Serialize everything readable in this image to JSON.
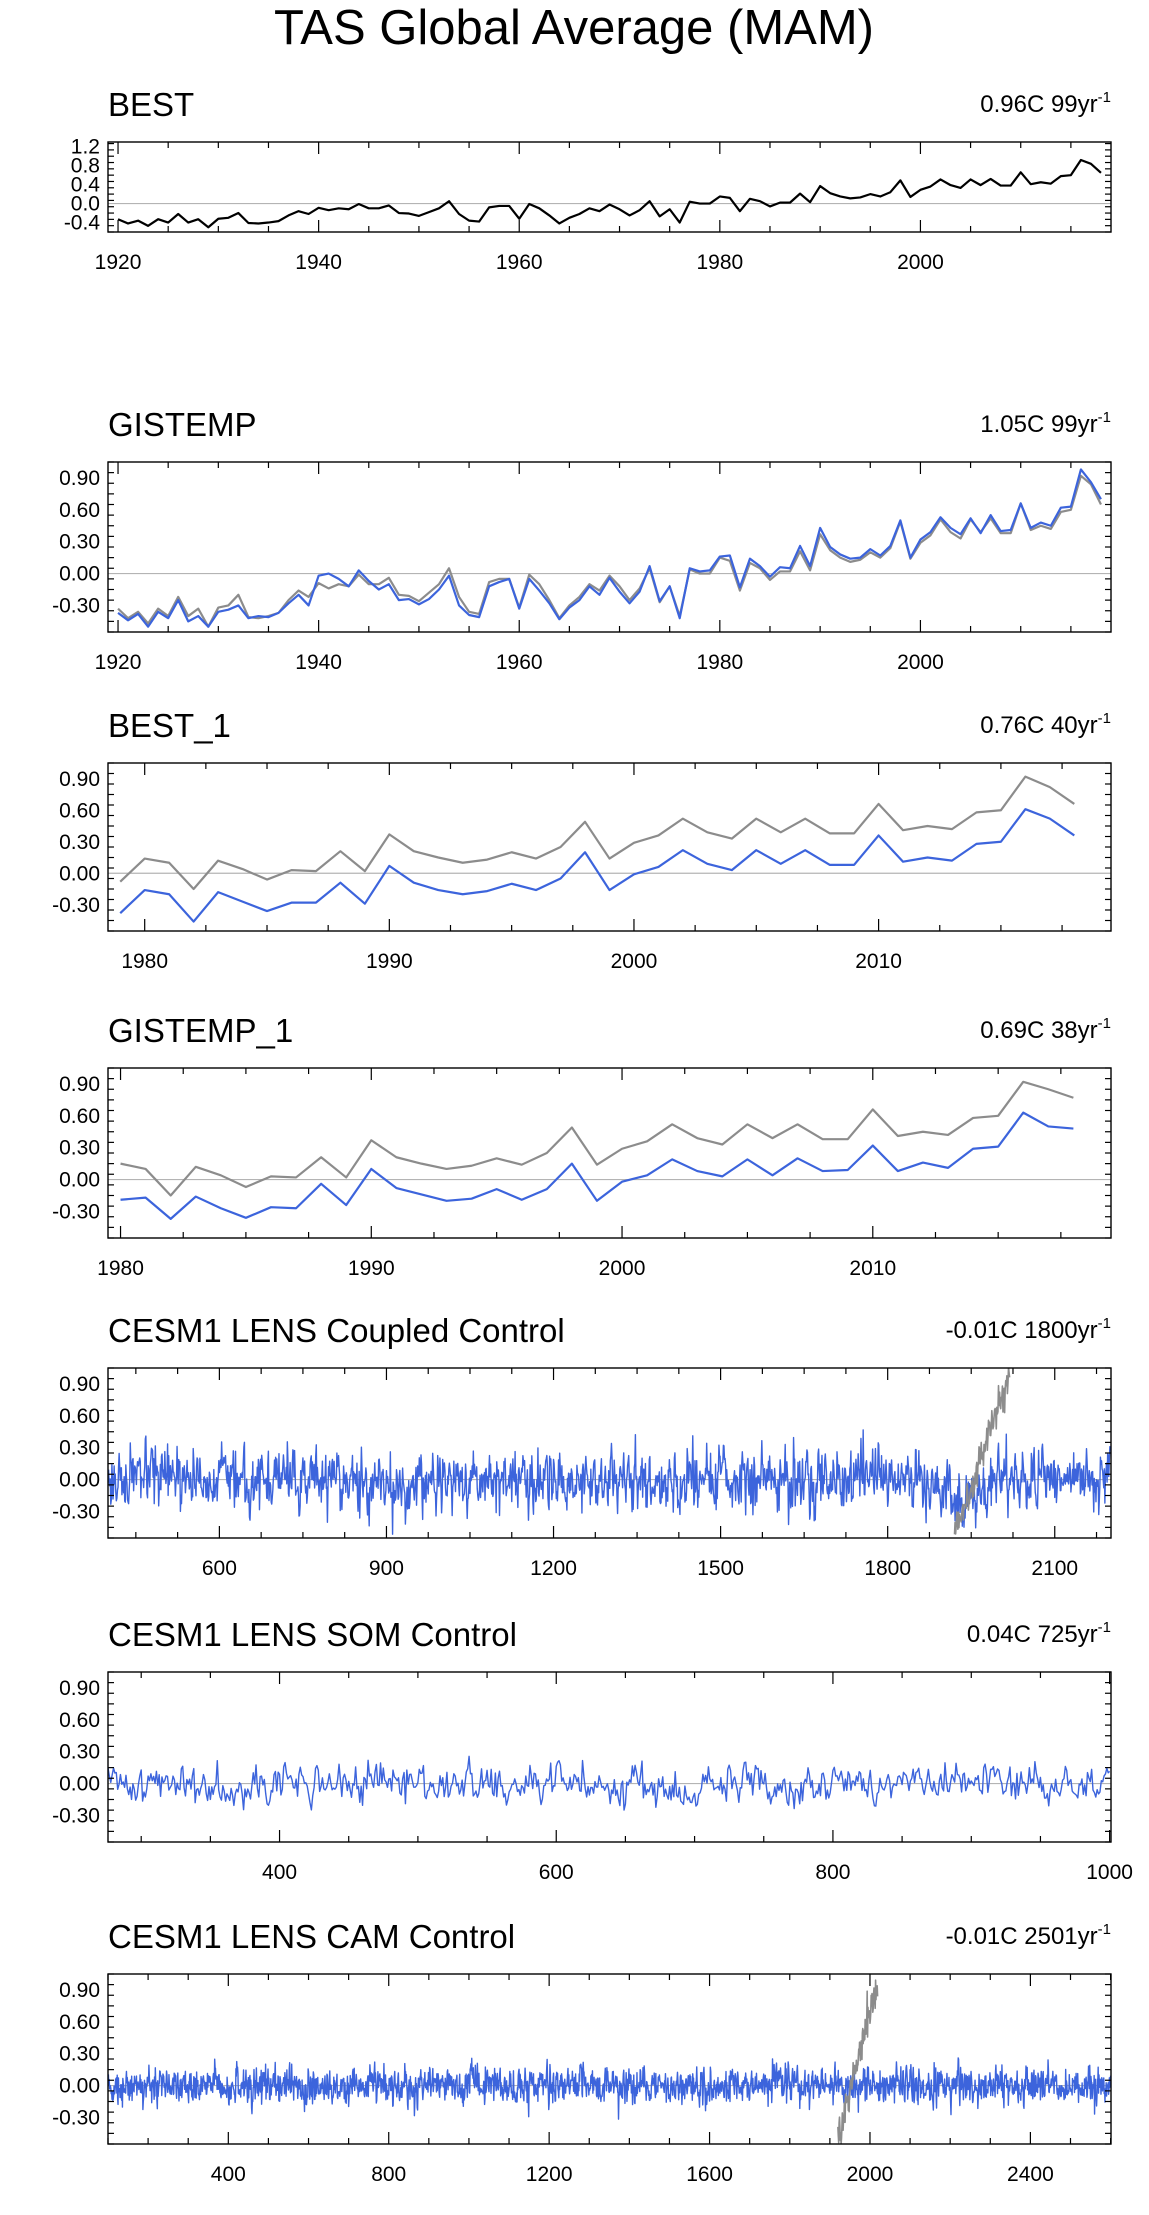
{
  "page_title": "TAS Global Average (MAM)",
  "colors": {
    "obs": "#000000",
    "ref": "#8c8c8c",
    "model": "#3c64dc",
    "zero": "#b4b4b4",
    "axis": "#000000"
  },
  "chart_data": [
    {
      "type": "line",
      "title": "BEST",
      "trend_text": "0.96C 99yr",
      "trend_sup": "-1",
      "xlim": [
        1919,
        2019
      ],
      "ylim": [
        -0.6,
        1.3
      ],
      "x_ticks": [
        1920,
        1940,
        1960,
        1980,
        2000
      ],
      "y_ticks": [
        -0.4,
        0.0,
        0.4,
        0.8,
        1.2
      ],
      "y_labels": [
        "-0.4",
        "0.0",
        "0.4",
        "0.8",
        "1.2"
      ],
      "x_start": 1920,
      "series": [
        {
          "name": "BEST",
          "role": "obs",
          "values": [
            -0.33,
            -0.42,
            -0.36,
            -0.47,
            -0.33,
            -0.4,
            -0.22,
            -0.4,
            -0.33,
            -0.5,
            -0.32,
            -0.3,
            -0.2,
            -0.41,
            -0.42,
            -0.4,
            -0.37,
            -0.25,
            -0.16,
            -0.22,
            -0.09,
            -0.14,
            -0.1,
            -0.12,
            -0.01,
            -0.1,
            -0.1,
            -0.04,
            -0.2,
            -0.21,
            -0.26,
            -0.18,
            -0.1,
            0.05,
            -0.22,
            -0.36,
            -0.38,
            -0.08,
            -0.05,
            -0.05,
            -0.32,
            -0.01,
            -0.1,
            -0.25,
            -0.42,
            -0.3,
            -0.22,
            -0.1,
            -0.16,
            -0.02,
            -0.12,
            -0.25,
            -0.14,
            0.05,
            -0.27,
            -0.12,
            -0.4,
            0.04,
            0.0,
            0.0,
            0.15,
            0.12,
            -0.16,
            0.1,
            0.05,
            -0.06,
            0.02,
            0.02,
            0.21,
            0.03,
            0.37,
            0.22,
            0.15,
            0.11,
            0.13,
            0.2,
            0.15,
            0.24,
            0.49,
            0.14,
            0.29,
            0.36,
            0.51,
            0.39,
            0.33,
            0.51,
            0.39,
            0.52,
            0.38,
            0.38,
            0.66,
            0.41,
            0.45,
            0.42,
            0.58,
            0.6,
            0.92,
            0.84,
            0.65
          ]
        }
      ]
    },
    {
      "type": "line",
      "title": "GISTEMP",
      "trend_text": "1.05C 99yr",
      "trend_sup": "-1",
      "xlim": [
        1919,
        2019
      ],
      "ylim": [
        -0.55,
        1.05
      ],
      "x_ticks": [
        1920,
        1940,
        1960,
        1980,
        2000
      ],
      "y_ticks": [
        -0.3,
        0.0,
        0.3,
        0.6,
        0.9
      ],
      "y_labels": [
        "-0.30",
        "0.00",
        "0.30",
        "0.60",
        "0.90"
      ],
      "x_start": 1920,
      "series": [
        {
          "name": "BEST",
          "role": "ref",
          "values": [
            -0.33,
            -0.42,
            -0.36,
            -0.47,
            -0.33,
            -0.4,
            -0.22,
            -0.4,
            -0.33,
            -0.5,
            -0.32,
            -0.3,
            -0.2,
            -0.41,
            -0.42,
            -0.4,
            -0.37,
            -0.25,
            -0.16,
            -0.22,
            -0.09,
            -0.14,
            -0.1,
            -0.12,
            -0.01,
            -0.1,
            -0.1,
            -0.04,
            -0.2,
            -0.21,
            -0.26,
            -0.18,
            -0.1,
            0.05,
            -0.22,
            -0.36,
            -0.38,
            -0.08,
            -0.05,
            -0.05,
            -0.32,
            -0.01,
            -0.1,
            -0.25,
            -0.42,
            -0.3,
            -0.22,
            -0.1,
            -0.16,
            -0.02,
            -0.12,
            -0.25,
            -0.14,
            0.05,
            -0.27,
            -0.12,
            -0.4,
            0.04,
            0.0,
            0.0,
            0.15,
            0.12,
            -0.16,
            0.1,
            0.05,
            -0.06,
            0.02,
            0.02,
            0.21,
            0.03,
            0.37,
            0.22,
            0.15,
            0.11,
            0.13,
            0.2,
            0.15,
            0.24,
            0.49,
            0.14,
            0.29,
            0.36,
            0.51,
            0.39,
            0.33,
            0.51,
            0.39,
            0.52,
            0.38,
            0.38,
            0.66,
            0.41,
            0.45,
            0.42,
            0.58,
            0.6,
            0.92,
            0.84,
            0.65
          ]
        },
        {
          "name": "GISTEMP",
          "role": "model",
          "values": [
            -0.37,
            -0.44,
            -0.38,
            -0.5,
            -0.36,
            -0.42,
            -0.25,
            -0.45,
            -0.4,
            -0.5,
            -0.36,
            -0.34,
            -0.3,
            -0.42,
            -0.4,
            -0.41,
            -0.37,
            -0.28,
            -0.2,
            -0.3,
            -0.02,
            0.0,
            -0.05,
            -0.12,
            0.03,
            -0.07,
            -0.15,
            -0.1,
            -0.25,
            -0.24,
            -0.29,
            -0.24,
            -0.15,
            -0.02,
            -0.3,
            -0.39,
            -0.41,
            -0.12,
            -0.08,
            -0.05,
            -0.33,
            -0.05,
            -0.16,
            -0.28,
            -0.43,
            -0.32,
            -0.25,
            -0.12,
            -0.2,
            -0.04,
            -0.17,
            -0.28,
            -0.17,
            0.07,
            -0.26,
            -0.12,
            -0.42,
            0.05,
            0.02,
            0.03,
            0.16,
            0.17,
            -0.13,
            0.14,
            0.07,
            -0.03,
            0.06,
            0.05,
            0.26,
            0.07,
            0.43,
            0.25,
            0.18,
            0.14,
            0.15,
            0.23,
            0.17,
            0.26,
            0.5,
            0.15,
            0.32,
            0.39,
            0.53,
            0.43,
            0.37,
            0.52,
            0.38,
            0.55,
            0.4,
            0.41,
            0.66,
            0.43,
            0.48,
            0.45,
            0.62,
            0.63,
            0.98,
            0.86,
            0.7
          ]
        }
      ]
    },
    {
      "type": "line",
      "title": "BEST_1",
      "trend_text": "0.76C 40yr",
      "trend_sup": "-1",
      "xlim": [
        1978.5,
        2019.5
      ],
      "ylim": [
        -0.55,
        1.05
      ],
      "x_ticks": [
        1980,
        1990,
        2000,
        2010
      ],
      "y_ticks": [
        -0.3,
        0.0,
        0.3,
        0.6,
        0.9
      ],
      "y_labels": [
        "-0.30",
        "0.00",
        "0.30",
        "0.60",
        "0.90"
      ],
      "x_start": 1979,
      "series": [
        {
          "name": "BEST",
          "role": "ref",
          "values": [
            -0.08,
            0.14,
            0.1,
            -0.15,
            0.12,
            0.04,
            -0.06,
            0.03,
            0.02,
            0.21,
            0.02,
            0.37,
            0.21,
            0.15,
            0.1,
            0.13,
            0.2,
            0.14,
            0.25,
            0.49,
            0.14,
            0.29,
            0.36,
            0.52,
            0.39,
            0.33,
            0.52,
            0.39,
            0.52,
            0.38,
            0.38,
            0.66,
            0.41,
            0.45,
            0.42,
            0.58,
            0.6,
            0.92,
            0.82,
            0.66
          ]
        },
        {
          "name": "BEST_1",
          "role": "model",
          "values": [
            -0.38,
            -0.16,
            -0.2,
            -0.46,
            -0.18,
            -0.27,
            -0.36,
            -0.28,
            -0.28,
            -0.09,
            -0.29,
            0.07,
            -0.09,
            -0.16,
            -0.2,
            -0.17,
            -0.1,
            -0.16,
            -0.05,
            0.2,
            -0.16,
            -0.01,
            0.06,
            0.22,
            0.09,
            0.03,
            0.22,
            0.09,
            0.22,
            0.08,
            0.08,
            0.36,
            0.11,
            0.15,
            0.12,
            0.28,
            0.3,
            0.61,
            0.52,
            0.36
          ]
        }
      ]
    },
    {
      "type": "line",
      "title": "GISTEMP_1",
      "trend_text": "0.69C 38yr",
      "trend_sup": "-1",
      "xlim": [
        1979.5,
        2019.5
      ],
      "ylim": [
        -0.55,
        1.05
      ],
      "x_ticks": [
        1980,
        1990,
        2000,
        2010
      ],
      "y_ticks": [
        -0.3,
        0.0,
        0.3,
        0.6,
        0.9
      ],
      "y_labels": [
        "-0.30",
        "0.00",
        "0.30",
        "0.60",
        "0.90"
      ],
      "x_start": 1980,
      "series": [
        {
          "name": "BEST",
          "role": "ref",
          "values": [
            0.15,
            0.1,
            -0.15,
            0.12,
            0.04,
            -0.07,
            0.03,
            0.02,
            0.21,
            0.02,
            0.37,
            0.21,
            0.15,
            0.1,
            0.13,
            0.2,
            0.14,
            0.25,
            0.49,
            0.14,
            0.29,
            0.36,
            0.52,
            0.39,
            0.33,
            0.52,
            0.39,
            0.52,
            0.38,
            0.38,
            0.66,
            0.41,
            0.45,
            0.42,
            0.58,
            0.6,
            0.92,
            0.85,
            0.77
          ]
        },
        {
          "name": "GISTEMP_1",
          "role": "model",
          "values": [
            -0.19,
            -0.17,
            -0.37,
            -0.16,
            -0.27,
            -0.36,
            -0.26,
            -0.27,
            -0.04,
            -0.24,
            0.1,
            -0.08,
            -0.14,
            -0.2,
            -0.18,
            -0.09,
            -0.19,
            -0.09,
            0.15,
            -0.2,
            -0.02,
            0.04,
            0.19,
            0.08,
            0.03,
            0.19,
            0.04,
            0.2,
            0.08,
            0.09,
            0.32,
            0.08,
            0.16,
            0.11,
            0.29,
            0.31,
            0.63,
            0.5,
            0.48
          ]
        }
      ]
    },
    {
      "type": "line",
      "title": "CESM1 LENS Coupled Control",
      "trend_text": "-0.01C 1800yr",
      "trend_sup": "-1",
      "xlim": [
        400,
        2201
      ],
      "ylim": [
        -0.55,
        1.05
      ],
      "x_ticks": [
        600,
        900,
        1200,
        1500,
        1800,
        2100
      ],
      "y_ticks": [
        -0.3,
        0.0,
        0.3,
        0.6,
        0.9
      ],
      "y_labels": [
        "-0.30",
        "0.00",
        "0.30",
        "0.60",
        "0.90"
      ],
      "noise": {
        "start": 401,
        "end": 2200,
        "amp": 0.13,
        "seed": 17,
        "dips": [
          [
            925,
            25,
            -0.15
          ],
          [
            1935,
            30,
            -0.18
          ]
        ]
      },
      "ref_segment": {
        "start": 1920,
        "end": 2019,
        "from": -0.5,
        "to": 1.0,
        "amp": 0.08,
        "seed": 5
      }
    },
    {
      "type": "line",
      "title": "CESM1 LENS SOM Control",
      "trend_text": "0.04C 725yr",
      "trend_sup": "-1",
      "xlim": [
        276,
        1001
      ],
      "ylim": [
        -0.55,
        1.05
      ],
      "x_ticks": [
        400,
        600,
        800,
        1000
      ],
      "y_ticks": [
        -0.3,
        0.0,
        0.3,
        0.6,
        0.9
      ],
      "y_labels": [
        "-0.30",
        "0.00",
        "0.30",
        "0.60",
        "0.90"
      ],
      "noise": {
        "start": 276,
        "end": 1000,
        "amp": 0.09,
        "seed": 41,
        "dips": [
          [
            695,
            12,
            -0.18
          ],
          [
            565,
            10,
            -0.08
          ]
        ]
      }
    },
    {
      "type": "line",
      "title": "CESM1 LENS CAM Control",
      "trend_text": "-0.01C 2501yr",
      "trend_sup": "-1",
      "xlim": [
        100,
        2601
      ],
      "ylim": [
        -0.55,
        1.05
      ],
      "x_ticks": [
        400,
        800,
        1200,
        1600,
        2000,
        2400
      ],
      "y_ticks": [
        -0.3,
        0.0,
        0.3,
        0.6,
        0.9
      ],
      "y_labels": [
        "-0.30",
        "0.00",
        "0.30",
        "0.60",
        "0.90"
      ],
      "noise": {
        "start": 101,
        "end": 2600,
        "amp": 0.08,
        "seed": 73,
        "dips": []
      },
      "ref_segment": {
        "start": 1920,
        "end": 2019,
        "from": -0.5,
        "to": 0.95,
        "amp": 0.08,
        "seed": 9
      }
    }
  ]
}
